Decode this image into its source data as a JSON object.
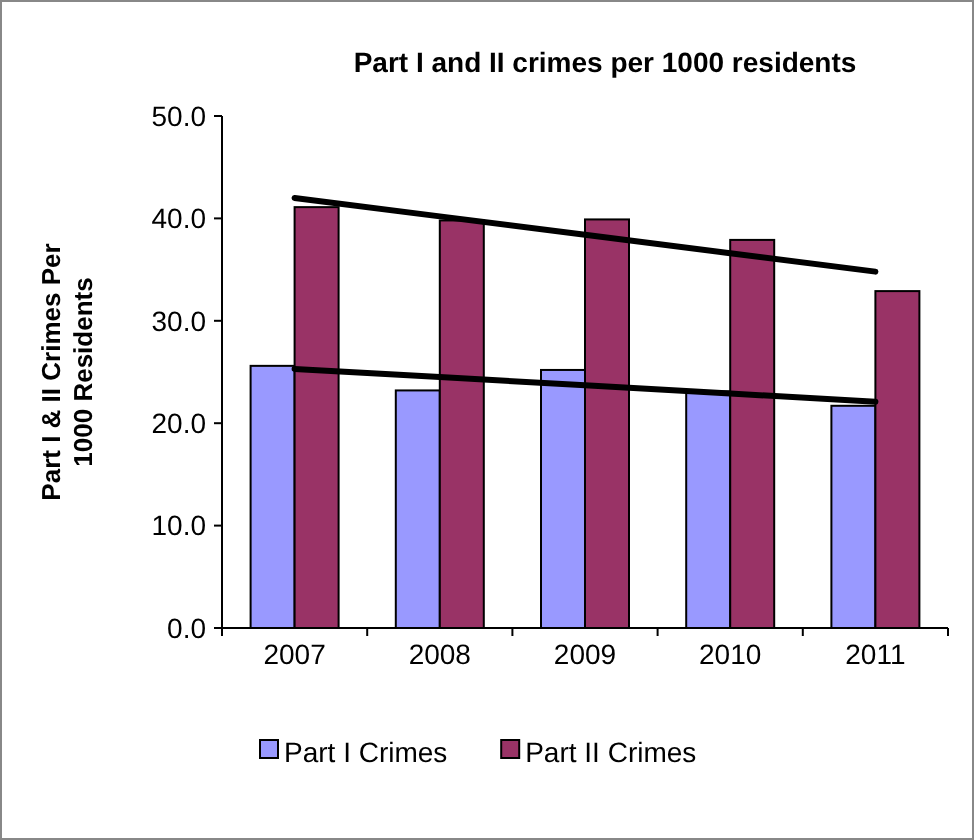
{
  "chart_data": {
    "type": "bar",
    "title": "Part I and II crimes per 1000 residents",
    "ylabel": "Part I  & II Crimes Per 1000 Residents",
    "categories": [
      "2007",
      "2008",
      "2009",
      "2010",
      "2011"
    ],
    "series": [
      {
        "name": "Part I Crimes",
        "color": "#9999ff",
        "values": [
          25.6,
          23.2,
          25.2,
          23.1,
          21.7
        ]
      },
      {
        "name": "Part II Crimes",
        "color": "#993366",
        "values": [
          41.1,
          39.8,
          39.9,
          37.9,
          32.9
        ]
      },
      {
        "type": "line",
        "color": "#000000",
        "values": [
          42.0,
          40.2,
          38.4,
          36.6,
          34.8
        ]
      },
      {
        "type": "line",
        "color": "#000000",
        "values": [
          25.3,
          24.5,
          23.7,
          22.9,
          22.1
        ]
      }
    ],
    "ylim": [
      0,
      50
    ],
    "yticks": [
      {
        "value": 0,
        "label": "0.0"
      },
      {
        "value": 10,
        "label": "10.0"
      },
      {
        "value": 20,
        "label": "20.0"
      },
      {
        "value": 30,
        "label": "30.0"
      },
      {
        "value": 40,
        "label": "40.0"
      },
      {
        "value": 50,
        "label": "50.0"
      }
    ],
    "grid": false,
    "legend": "bottom",
    "marker": "none"
  }
}
